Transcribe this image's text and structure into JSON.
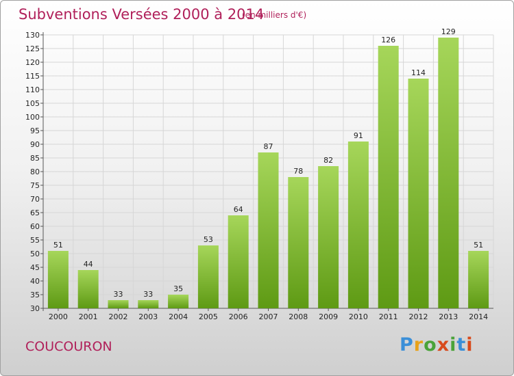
{
  "header": {
    "title": "Subventions Versées 2000 à 2014",
    "subtitle": "(en milliers d'€)"
  },
  "footer": {
    "commune": "COUCOURON",
    "logo_text": "Proxiti"
  },
  "colors": {
    "bar_top": "#a6d65a",
    "bar_bottom": "#5e9a14",
    "title": "#b0205a"
  },
  "chart_data": {
    "type": "bar",
    "title": "Subventions Versées 2000 à 2014",
    "subtitle": "(en milliers d'€)",
    "categories": [
      "2000",
      "2001",
      "2002",
      "2003",
      "2004",
      "2005",
      "2006",
      "2007",
      "2008",
      "2009",
      "2010",
      "2011",
      "2012",
      "2013",
      "2014"
    ],
    "values": [
      51,
      44,
      33,
      33,
      35,
      53,
      64,
      87,
      78,
      82,
      91,
      126,
      114,
      129,
      51
    ],
    "ylim": [
      30,
      130
    ],
    "yticks": [
      30,
      35,
      40,
      45,
      50,
      55,
      60,
      65,
      70,
      75,
      80,
      85,
      90,
      95,
      100,
      105,
      110,
      115,
      120,
      125,
      130
    ],
    "grid": true,
    "legend": "none"
  }
}
